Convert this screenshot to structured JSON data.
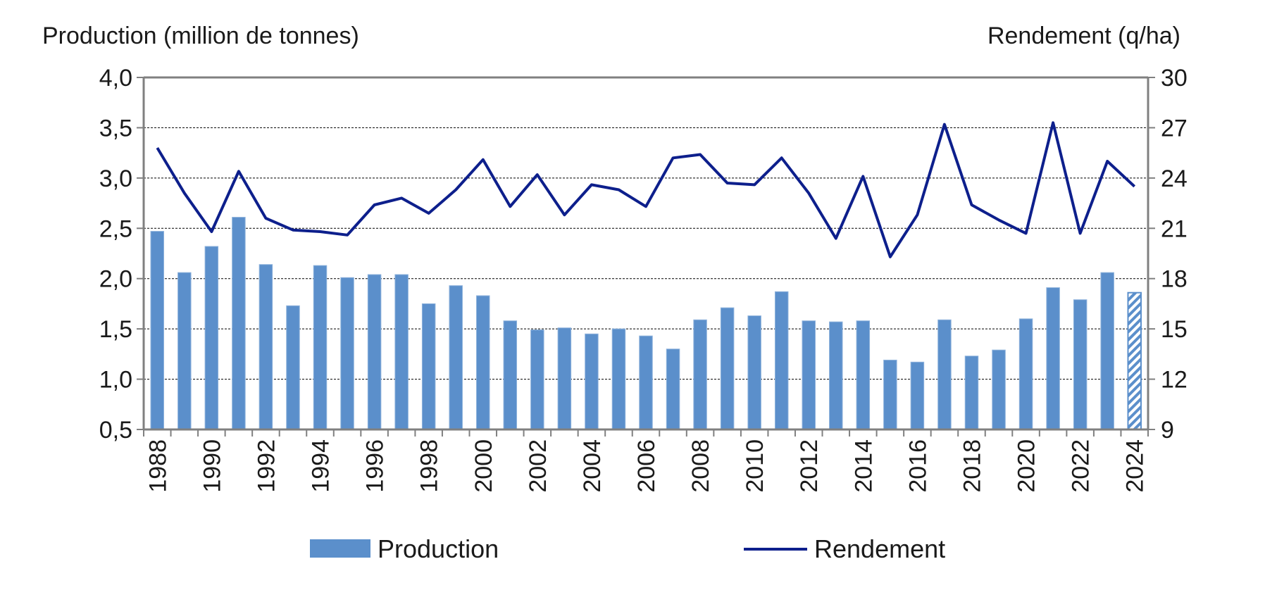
{
  "chart_data": {
    "type": "bar",
    "left_axis_title": "Production (million de tonnes)",
    "right_axis_title": "Rendement (q/ha)",
    "x": [
      1988,
      1989,
      1990,
      1991,
      1992,
      1993,
      1994,
      1995,
      1996,
      1997,
      1998,
      1999,
      2000,
      2001,
      2002,
      2003,
      2004,
      2005,
      2006,
      2007,
      2008,
      2009,
      2010,
      2011,
      2012,
      2013,
      2014,
      2015,
      2016,
      2017,
      2018,
      2019,
      2020,
      2021,
      2022,
      2023,
      2024
    ],
    "x_tick_labels": [
      "1988",
      "1990",
      "1992",
      "1994",
      "1996",
      "1998",
      "2000",
      "2002",
      "2004",
      "2006",
      "2008",
      "2010",
      "2012",
      "2014",
      "2016",
      "2018",
      "2020",
      "2022",
      "2024"
    ],
    "left_axis": {
      "min": 0.5,
      "max": 4.0,
      "ticks": [
        "0,5",
        "1,0",
        "1,5",
        "2,0",
        "2,5",
        "3,0",
        "3,5",
        "4,0"
      ]
    },
    "right_axis": {
      "min": 9,
      "max": 30,
      "ticks": [
        "9",
        "12",
        "15",
        "18",
        "21",
        "24",
        "27",
        "30"
      ]
    },
    "grid": true,
    "series": [
      {
        "name": "Production",
        "type": "bar",
        "axis": "left",
        "color": "#5b8fcb",
        "values": [
          2.47,
          2.06,
          2.32,
          2.61,
          2.14,
          1.73,
          2.13,
          2.01,
          2.04,
          2.04,
          1.75,
          1.93,
          1.83,
          1.58,
          1.49,
          1.51,
          1.45,
          1.5,
          1.43,
          1.3,
          1.59,
          1.71,
          1.63,
          1.87,
          1.58,
          1.57,
          1.58,
          1.19,
          1.17,
          1.59,
          1.23,
          1.29,
          1.6,
          1.91,
          1.79,
          2.06,
          1.86
        ],
        "hatched_last": true
      },
      {
        "name": "Rendement",
        "type": "line",
        "axis": "right",
        "color": "#0d1f8c",
        "values": [
          25.8,
          23.1,
          20.8,
          24.4,
          21.6,
          20.9,
          20.8,
          20.6,
          22.4,
          22.8,
          21.9,
          23.3,
          25.1,
          22.3,
          24.2,
          21.8,
          23.6,
          23.3,
          22.3,
          25.2,
          25.4,
          23.7,
          23.6,
          25.2,
          23.1,
          20.4,
          24.1,
          19.3,
          21.8,
          27.2,
          22.4,
          21.5,
          20.7,
          27.3,
          20.7,
          25.0,
          23.5
        ]
      }
    ],
    "legend": {
      "placement": "bottom-center"
    }
  }
}
